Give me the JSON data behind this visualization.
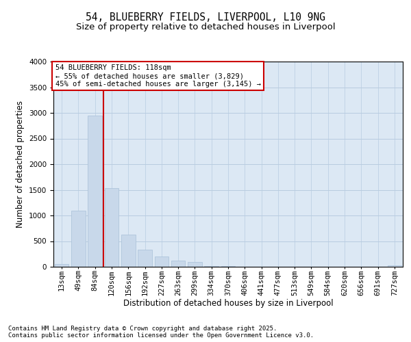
{
  "title_line1": "54, BLUEBERRY FIELDS, LIVERPOOL, L10 9NG",
  "title_line2": "Size of property relative to detached houses in Liverpool",
  "xlabel": "Distribution of detached houses by size in Liverpool",
  "ylabel": "Number of detached properties",
  "bar_labels": [
    "13sqm",
    "49sqm",
    "84sqm",
    "120sqm",
    "156sqm",
    "192sqm",
    "227sqm",
    "263sqm",
    "299sqm",
    "334sqm",
    "370sqm",
    "406sqm",
    "441sqm",
    "477sqm",
    "513sqm",
    "549sqm",
    "584sqm",
    "620sqm",
    "656sqm",
    "691sqm",
    "727sqm"
  ],
  "bar_values": [
    60,
    1100,
    2950,
    1530,
    630,
    330,
    200,
    120,
    100,
    20,
    10,
    5,
    3,
    2,
    2,
    1,
    1,
    0,
    0,
    0,
    30
  ],
  "bar_color": "#c8d8ea",
  "bar_edgecolor": "#a8c0d8",
  "vline_x_index": 2.5,
  "vline_color": "#cc0000",
  "annotation_text": "54 BLUEBERRY FIELDS: 118sqm\n← 55% of detached houses are smaller (3,829)\n45% of semi-detached houses are larger (3,145) →",
  "annotation_box_color": "white",
  "annotation_box_edgecolor": "#cc0000",
  "ylim": [
    0,
    4000
  ],
  "yticks": [
    0,
    500,
    1000,
    1500,
    2000,
    2500,
    3000,
    3500,
    4000
  ],
  "grid_color": "#b8cce0",
  "background_color": "#dce8f4",
  "footer_text": "Contains HM Land Registry data © Crown copyright and database right 2025.\nContains public sector information licensed under the Open Government Licence v3.0.",
  "title_fontsize": 10.5,
  "subtitle_fontsize": 9.5,
  "axis_label_fontsize": 8.5,
  "tick_fontsize": 7.5,
  "annotation_fontsize": 7.5,
  "footer_fontsize": 6.5
}
